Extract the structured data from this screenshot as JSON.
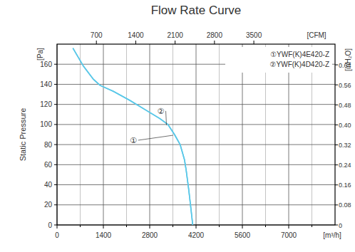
{
  "chart_data": {
    "type": "line",
    "title": "Flow Rate Curve",
    "xlabel": "[m³/h]",
    "x2label": "[CFM]",
    "ylabel": "Static Pressure",
    "y_unit": "[Pa]",
    "y2label": "[inH₂O]",
    "x": [
      480,
      800,
      1100,
      1300,
      1700,
      2200,
      2700,
      3100,
      3350,
      3550,
      3720,
      3850,
      3900,
      3980,
      4050,
      4100
    ],
    "series": [
      {
        "name": "①YWF(K)4E420-Z",
        "color": "#5bc8e8",
        "values": [
          176,
          158,
          145,
          139,
          133,
          124,
          114,
          106,
          100,
          90,
          80,
          65,
          55,
          35,
          15,
          0
        ]
      },
      {
        "name": "②YWF(K)4D420-Z",
        "color": "#5bc8e8",
        "values": [
          176,
          158,
          145,
          139,
          133,
          124,
          114,
          106,
          100,
          90,
          80,
          65,
          55,
          35,
          15,
          0
        ]
      }
    ],
    "annotations": [
      "①",
      "②"
    ],
    "xlim": [
      0,
      8400
    ],
    "xticks": [
      0,
      1400,
      2800,
      4200,
      5600,
      7000
    ],
    "x2lim": [
      0,
      4944
    ],
    "x2ticks": [
      700,
      1400,
      2100,
      2800,
      3500
    ],
    "ylim": [
      0,
      180
    ],
    "yticks": [
      0,
      20,
      40,
      60,
      80,
      100,
      120,
      140,
      160
    ],
    "y2lim": [
      0,
      0.72264
    ],
    "y2ticks": [
      0,
      0.08,
      0.16,
      0.24,
      0.32,
      {
        "value": 0.4,
        "label": "0.40"
      },
      0.48,
      0.56,
      0.64
    ],
    "grid": true,
    "legend": "upper right"
  }
}
